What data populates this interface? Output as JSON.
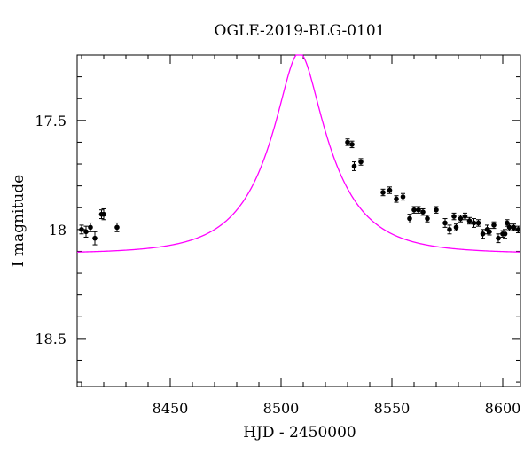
{
  "chart_data": {
    "type": "scatter",
    "title": "OGLE-2019-BLG-0101",
    "xlabel": "HJD - 2450000",
    "ylabel": "I magnitude",
    "xlim": [
      8408,
      8608
    ],
    "ylim": [
      18.72,
      17.2
    ],
    "y_inverted": true,
    "x_ticks": [
      8450,
      8500,
      8550,
      8600
    ],
    "x_tick_labels": [
      "8450",
      "8500",
      "8550",
      "8600"
    ],
    "y_ticks": [
      17.5,
      18,
      18.5
    ],
    "y_tick_labels": [
      "17.5",
      "18",
      "18.5"
    ],
    "grid": false,
    "colors": {
      "model": "#ff00ff",
      "data": "#000000"
    },
    "model": {
      "t0": 8508.2,
      "u0": 0.3,
      "tE": 28,
      "baseline_mag": 18.11,
      "peak_mag": 17.19
    },
    "series": [
      {
        "x": [
          8410,
          8412,
          8414,
          8416,
          8419,
          8420,
          8426,
          8530,
          8532,
          8533,
          8536,
          8546,
          8549,
          8552,
          8555,
          8558,
          8560,
          8562,
          8564,
          8566,
          8570,
          8574,
          8576,
          8578,
          8579,
          8581,
          8583,
          8585,
          8587,
          8589,
          8591,
          8593,
          8594,
          8596,
          8598,
          8600,
          8601,
          8602,
          8603,
          8605,
          8607
        ],
        "y": [
          18.0,
          18.01,
          17.99,
          18.04,
          17.93,
          17.93,
          17.99,
          17.6,
          17.61,
          17.71,
          17.69,
          17.83,
          17.82,
          17.86,
          17.85,
          17.95,
          17.91,
          17.91,
          17.92,
          17.95,
          17.91,
          17.97,
          18.0,
          17.94,
          17.99,
          17.95,
          17.94,
          17.96,
          17.97,
          17.97,
          18.02,
          18.0,
          18.01,
          17.98,
          18.04,
          18.02,
          18.02,
          17.97,
          17.99,
          17.99,
          18.0
        ],
        "yerr": [
          0.02,
          0.025,
          0.02,
          0.03,
          0.02,
          0.025,
          0.02,
          0.015,
          0.015,
          0.02,
          0.015,
          0.015,
          0.015,
          0.015,
          0.015,
          0.02,
          0.015,
          0.015,
          0.015,
          0.015,
          0.015,
          0.02,
          0.02,
          0.015,
          0.015,
          0.015,
          0.015,
          0.015,
          0.02,
          0.015,
          0.02,
          0.02,
          0.015,
          0.015,
          0.02,
          0.015,
          0.02,
          0.015,
          0.015,
          0.015,
          0.015
        ]
      }
    ]
  }
}
